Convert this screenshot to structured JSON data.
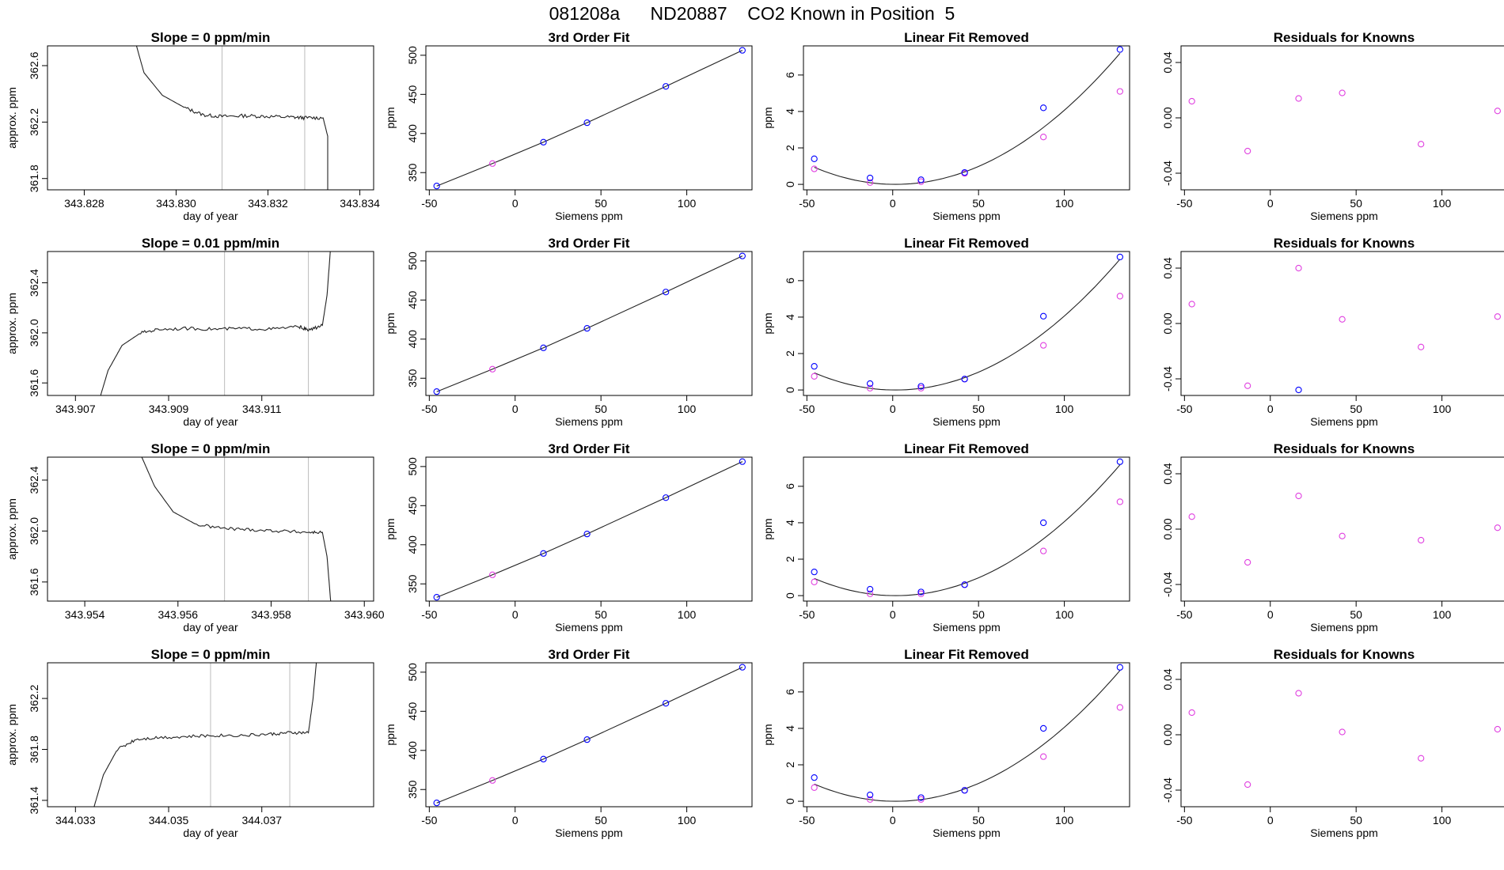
{
  "figure_title": "081208a      ND20887    CO2 Known in Position  5",
  "colors": {
    "trace": "#222222",
    "frame": "#000000",
    "window_line": "#bbbbbb",
    "fit_point": "#0000ff",
    "known_point": "#e040e0",
    "fit_line": "#222222"
  },
  "chart_data": [
    {
      "type": "line",
      "panel": "slope",
      "row": 1,
      "title": "Slope =  0  ppm/min",
      "xlabel": "day of year",
      "ylabel": "approx. ppm",
      "xlim": [
        343.8272,
        343.8343
      ],
      "ylim": [
        361.72,
        362.74
      ],
      "xticks": [
        "343.828",
        "343.830",
        "343.832",
        "343.834"
      ],
      "yticks": [
        "361.8",
        "362.2",
        "362.6"
      ],
      "window": [
        343.831,
        343.8328
      ],
      "trace": [
        [
          343.829,
          362.9
        ],
        [
          343.8293,
          362.55
        ],
        [
          343.8297,
          362.39
        ],
        [
          343.8302,
          362.3
        ],
        [
          343.8306,
          362.25
        ],
        [
          343.831,
          362.24
        ],
        [
          343.8315,
          362.245
        ],
        [
          343.832,
          362.24
        ],
        [
          343.8325,
          362.235
        ],
        [
          343.8328,
          362.23
        ],
        [
          343.8332,
          362.23
        ],
        [
          343.8333,
          362.1
        ],
        [
          343.8333,
          361.6
        ]
      ]
    },
    {
      "type": "scatter",
      "panel": "fit",
      "row": 1,
      "title": "3rd Order Fit",
      "xlabel": "Siemens ppm",
      "ylabel": "ppm",
      "xlim": [
        -52,
        138
      ],
      "ylim": [
        328,
        512
      ],
      "xticks": [
        "-50",
        "0",
        "50",
        "100"
      ],
      "yticks": [
        "350",
        "400",
        "450",
        "500"
      ],
      "x": [
        -45.7,
        -13.2,
        16.5,
        41.9,
        87.8,
        132.4
      ],
      "y": [
        332.9,
        361.6,
        388.9,
        413.8,
        460.2,
        506.3
      ]
    },
    {
      "type": "scatter",
      "panel": "linear_removed",
      "row": 1,
      "title": "Linear Fit Removed",
      "xlabel": "Siemens ppm",
      "ylabel": "ppm",
      "xlim": [
        -52,
        138
      ],
      "ylim": [
        -0.3,
        7.6
      ],
      "xticks": [
        "-50",
        "0",
        "50",
        "100"
      ],
      "yticks": [
        "0",
        "2",
        "4",
        "6"
      ],
      "x": [
        -45.7,
        -13.2,
        16.5,
        41.9,
        87.8,
        132.4
      ],
      "y_fit": [
        1.4,
        0.35,
        0.25,
        0.65,
        4.2,
        7.4
      ],
      "y_known": [
        0.85,
        0.1,
        0.15,
        0.6,
        2.6,
        5.1
      ],
      "curve_coeffs": [
        0.0,
        -0.0013,
        0.00042
      ]
    },
    {
      "type": "scatter",
      "panel": "residuals",
      "row": 1,
      "title": "Residuals for Knowns",
      "xlabel": "Siemens ppm",
      "ylabel": "",
      "xlim": [
        -52,
        138
      ],
      "ylim": [
        -0.052,
        0.052
      ],
      "xticks": [
        "-50",
        "0",
        "50",
        "100"
      ],
      "yticks": [
        "-0.04",
        "0.00",
        "0.04"
      ],
      "x": [
        -45.7,
        -13.2,
        16.5,
        41.9,
        87.8,
        132.4
      ],
      "y_known": [
        0.012,
        -0.024,
        0.014,
        0.018,
        -0.019,
        0.005
      ],
      "y_fit": []
    },
    {
      "type": "line",
      "panel": "slope",
      "row": 2,
      "title": "Slope =  0.01  ppm/min",
      "xlabel": "day of year",
      "ylabel": "approx. ppm",
      "xlim": [
        343.9064,
        343.9134
      ],
      "ylim": [
        361.5,
        362.65
      ],
      "xticks": [
        "343.907",
        "343.909",
        "343.911"
      ],
      "yticks": [
        "361.6",
        "362.0",
        "362.4"
      ],
      "window": [
        343.9102,
        343.912
      ],
      "trace": [
        [
          343.9075,
          361.45
        ],
        [
          343.9077,
          361.7
        ],
        [
          343.908,
          361.9
        ],
        [
          343.9084,
          362.0
        ],
        [
          343.9088,
          362.03
        ],
        [
          343.9094,
          362.035
        ],
        [
          343.91,
          362.03
        ],
        [
          343.9106,
          362.035
        ],
        [
          343.9112,
          362.03
        ],
        [
          343.9118,
          362.05
        ],
        [
          343.912,
          362.02
        ],
        [
          343.9123,
          362.06
        ],
        [
          343.9124,
          362.3
        ],
        [
          343.9125,
          362.8
        ]
      ]
    },
    {
      "type": "scatter",
      "panel": "fit",
      "row": 2,
      "title": "3rd Order Fit",
      "xlabel": "Siemens ppm",
      "ylabel": "ppm",
      "xlim": [
        -52,
        138
      ],
      "ylim": [
        328,
        512
      ],
      "xticks": [
        "-50",
        "0",
        "50",
        "100"
      ],
      "yticks": [
        "350",
        "400",
        "450",
        "500"
      ],
      "x": [
        -45.7,
        -13.2,
        16.5,
        41.9,
        87.8,
        132.4
      ],
      "y": [
        332.9,
        361.6,
        388.9,
        413.8,
        460.2,
        506.3
      ]
    },
    {
      "type": "scatter",
      "panel": "linear_removed",
      "row": 2,
      "title": "Linear Fit Removed",
      "xlabel": "Siemens ppm",
      "ylabel": "ppm",
      "xlim": [
        -52,
        138
      ],
      "ylim": [
        -0.3,
        7.6
      ],
      "xticks": [
        "-50",
        "0",
        "50",
        "100"
      ],
      "yticks": [
        "0",
        "2",
        "4",
        "6"
      ],
      "x": [
        -45.7,
        -13.2,
        16.5,
        41.9,
        87.8,
        132.4
      ],
      "y_fit": [
        1.3,
        0.35,
        0.2,
        0.6,
        4.05,
        7.3
      ],
      "y_known": [
        0.75,
        0.1,
        0.1,
        0.6,
        2.45,
        5.15
      ],
      "curve_coeffs": [
        0.0,
        -0.0014,
        0.00042
      ]
    },
    {
      "type": "scatter",
      "panel": "residuals",
      "row": 2,
      "title": "Residuals for Knowns",
      "xlabel": "Siemens ppm",
      "ylabel": "",
      "xlim": [
        -52,
        138
      ],
      "ylim": [
        -0.052,
        0.052
      ],
      "xticks": [
        "-50",
        "0",
        "50",
        "100"
      ],
      "yticks": [
        "-0.04",
        "0.00",
        "0.04"
      ],
      "x": [
        -45.7,
        -13.2,
        16.5,
        41.9,
        87.8,
        132.4
      ],
      "y_known": [
        0.014,
        -0.045,
        0.04,
        0.003,
        -0.017,
        0.005
      ],
      "y_fit": [
        [
          16.5,
          -0.048
        ]
      ]
    },
    {
      "type": "line",
      "panel": "slope",
      "row": 3,
      "title": "Slope =  0  ppm/min",
      "xlabel": "day of year",
      "ylabel": "approx. ppm",
      "xlim": [
        343.9532,
        343.9602
      ],
      "ylim": [
        361.45,
        362.58
      ],
      "xticks": [
        "343.954",
        "343.956",
        "343.958",
        "343.960"
      ],
      "yticks": [
        "361.6",
        "362.0",
        "362.4"
      ],
      "window": [
        343.957,
        343.9588
      ],
      "trace": [
        [
          343.9552,
          362.6
        ],
        [
          343.9555,
          362.35
        ],
        [
          343.9559,
          362.15
        ],
        [
          343.9564,
          362.05
        ],
        [
          343.957,
          362.02
        ],
        [
          343.9576,
          362.01
        ],
        [
          343.9582,
          362.0
        ],
        [
          343.9588,
          361.99
        ],
        [
          343.9591,
          361.99
        ],
        [
          343.9592,
          361.8
        ],
        [
          343.9593,
          361.35
        ]
      ]
    },
    {
      "type": "scatter",
      "panel": "fit",
      "row": 3,
      "title": "3rd Order Fit",
      "xlabel": "Siemens ppm",
      "ylabel": "ppm",
      "xlim": [
        -52,
        138
      ],
      "ylim": [
        328,
        512
      ],
      "xticks": [
        "-50",
        "0",
        "50",
        "100"
      ],
      "yticks": [
        "350",
        "400",
        "450",
        "500"
      ],
      "x": [
        -45.7,
        -13.2,
        16.5,
        41.9,
        87.8,
        132.4
      ],
      "y": [
        332.9,
        361.6,
        388.9,
        413.8,
        460.2,
        506.3
      ]
    },
    {
      "type": "scatter",
      "panel": "linear_removed",
      "row": 3,
      "title": "Linear Fit Removed",
      "xlabel": "Siemens ppm",
      "ylabel": "ppm",
      "xlim": [
        -52,
        138
      ],
      "ylim": [
        -0.3,
        7.6
      ],
      "xticks": [
        "-50",
        "0",
        "50",
        "100"
      ],
      "yticks": [
        "0",
        "2",
        "4",
        "6"
      ],
      "x": [
        -45.7,
        -13.2,
        16.5,
        41.9,
        87.8,
        132.4
      ],
      "y_fit": [
        1.3,
        0.35,
        0.2,
        0.6,
        4.0,
        7.35
      ],
      "y_known": [
        0.75,
        0.1,
        0.1,
        0.6,
        2.45,
        5.15
      ],
      "curve_coeffs": [
        0.0,
        -0.0014,
        0.00042
      ]
    },
    {
      "type": "scatter",
      "panel": "residuals",
      "row": 3,
      "title": "Residuals for Knowns",
      "xlabel": "Siemens ppm",
      "ylabel": "",
      "xlim": [
        -52,
        138
      ],
      "ylim": [
        -0.052,
        0.052
      ],
      "xticks": [
        "-50",
        "0",
        "50",
        "100"
      ],
      "yticks": [
        "-0.04",
        "0.00",
        "0.04"
      ],
      "x": [
        -45.7,
        -13.2,
        16.5,
        41.9,
        87.8,
        132.4
      ],
      "y_known": [
        0.009,
        -0.024,
        0.024,
        -0.005,
        -0.008,
        0.001
      ],
      "y_fit": []
    },
    {
      "type": "line",
      "panel": "slope",
      "row": 4,
      "title": "Slope =  0  ppm/min",
      "xlabel": "day of year",
      "ylabel": "approx. ppm",
      "xlim": [
        344.0324,
        344.0394
      ],
      "ylim": [
        361.35,
        362.48
      ],
      "xticks": [
        "344.033",
        "344.035",
        "344.037"
      ],
      "yticks": [
        "361.4",
        "361.8",
        "362.2"
      ],
      "window": [
        344.0359,
        344.0376
      ],
      "trace": [
        [
          344.0334,
          361.35
        ],
        [
          344.0336,
          361.6
        ],
        [
          344.0339,
          361.8
        ],
        [
          344.0343,
          361.88
        ],
        [
          344.0348,
          361.895
        ],
        [
          344.0354,
          361.9
        ],
        [
          344.036,
          361.91
        ],
        [
          344.0366,
          361.91
        ],
        [
          344.0372,
          361.92
        ],
        [
          344.0376,
          361.93
        ],
        [
          344.038,
          361.93
        ],
        [
          344.0381,
          362.2
        ],
        [
          344.0382,
          362.6
        ]
      ]
    },
    {
      "type": "scatter",
      "panel": "fit",
      "row": 4,
      "title": "3rd Order Fit",
      "xlabel": "Siemens ppm",
      "ylabel": "ppm",
      "xlim": [
        -52,
        138
      ],
      "ylim": [
        328,
        512
      ],
      "xticks": [
        "-50",
        "0",
        "50",
        "100"
      ],
      "yticks": [
        "350",
        "400",
        "450",
        "500"
      ],
      "x": [
        -45.7,
        -13.2,
        16.5,
        41.9,
        87.8,
        132.4
      ],
      "y": [
        332.9,
        361.6,
        388.9,
        413.8,
        460.2,
        506.3
      ]
    },
    {
      "type": "scatter",
      "panel": "linear_removed",
      "row": 4,
      "title": "Linear Fit Removed",
      "xlabel": "Siemens ppm",
      "ylabel": "ppm",
      "xlim": [
        -52,
        138
      ],
      "ylim": [
        -0.3,
        7.6
      ],
      "xticks": [
        "-50",
        "0",
        "50",
        "100"
      ],
      "yticks": [
        "0",
        "2",
        "4",
        "6"
      ],
      "x": [
        -45.7,
        -13.2,
        16.5,
        41.9,
        87.8,
        132.4
      ],
      "y_fit": [
        1.3,
        0.35,
        0.2,
        0.6,
        4.0,
        7.35
      ],
      "y_known": [
        0.75,
        0.1,
        0.1,
        0.6,
        2.45,
        5.15
      ],
      "curve_coeffs": [
        0.0,
        -0.0014,
        0.00042
      ]
    },
    {
      "type": "scatter",
      "panel": "residuals",
      "row": 4,
      "title": "Residuals for Knowns",
      "xlabel": "Siemens ppm",
      "ylabel": "",
      "xlim": [
        -52,
        138
      ],
      "ylim": [
        -0.052,
        0.052
      ],
      "xticks": [
        "-50",
        "0",
        "50",
        "100"
      ],
      "yticks": [
        "-0.04",
        "0.00",
        "0.04"
      ],
      "x": [
        -45.7,
        -13.2,
        16.5,
        41.9,
        87.8,
        132.4
      ],
      "y_known": [
        0.016,
        -0.036,
        0.03,
        0.002,
        -0.017,
        0.004
      ],
      "y_fit": []
    }
  ]
}
